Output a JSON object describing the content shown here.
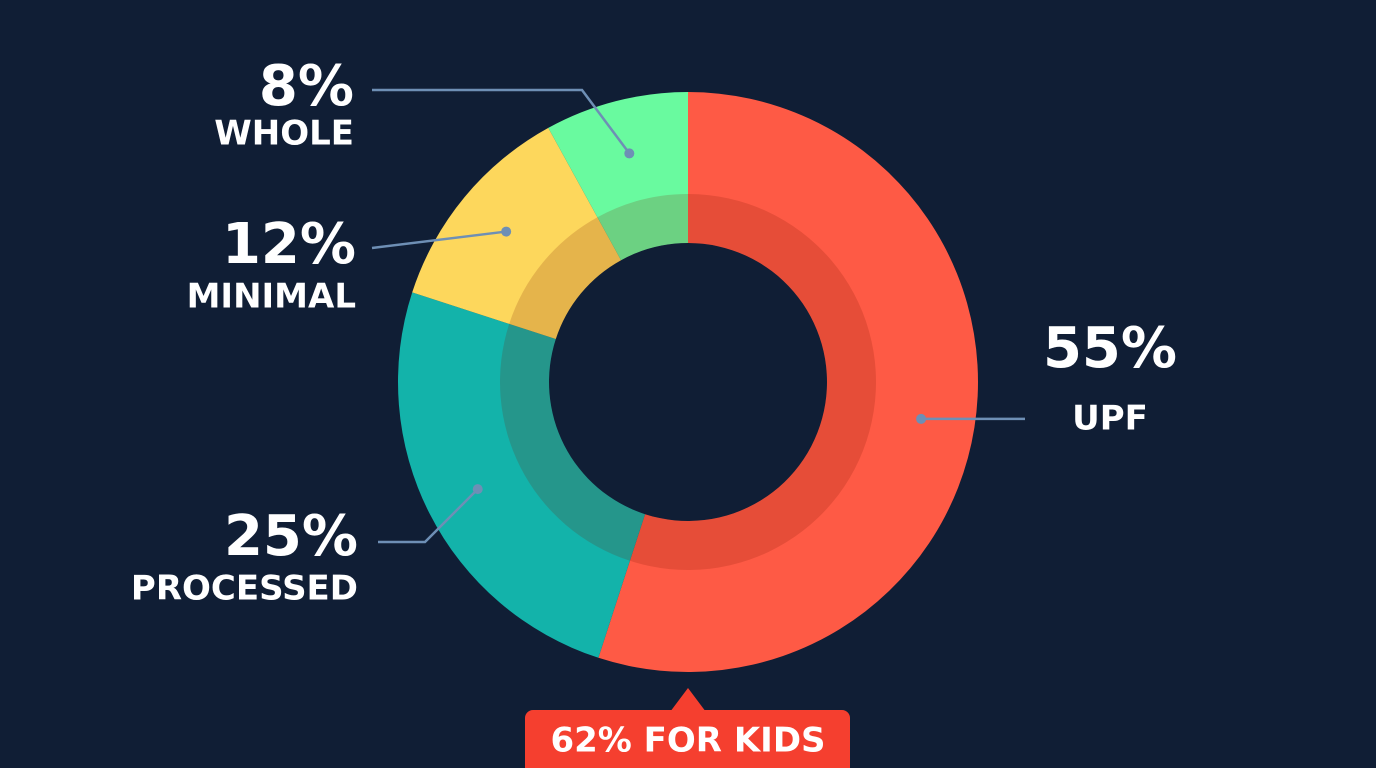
{
  "chart_data": {
    "type": "pie",
    "categories": [
      "UPF",
      "PROCESSED",
      "MINIMAL",
      "WHOLE"
    ],
    "values": [
      55,
      25,
      12,
      8
    ],
    "value_labels": [
      "55%",
      "25%",
      "12%",
      "8%"
    ],
    "colors": [
      "#fe5a45",
      "#13b3aa",
      "#fdd75c",
      "#69fa9f"
    ],
    "annotation": "62% FOR KIDS"
  }
}
